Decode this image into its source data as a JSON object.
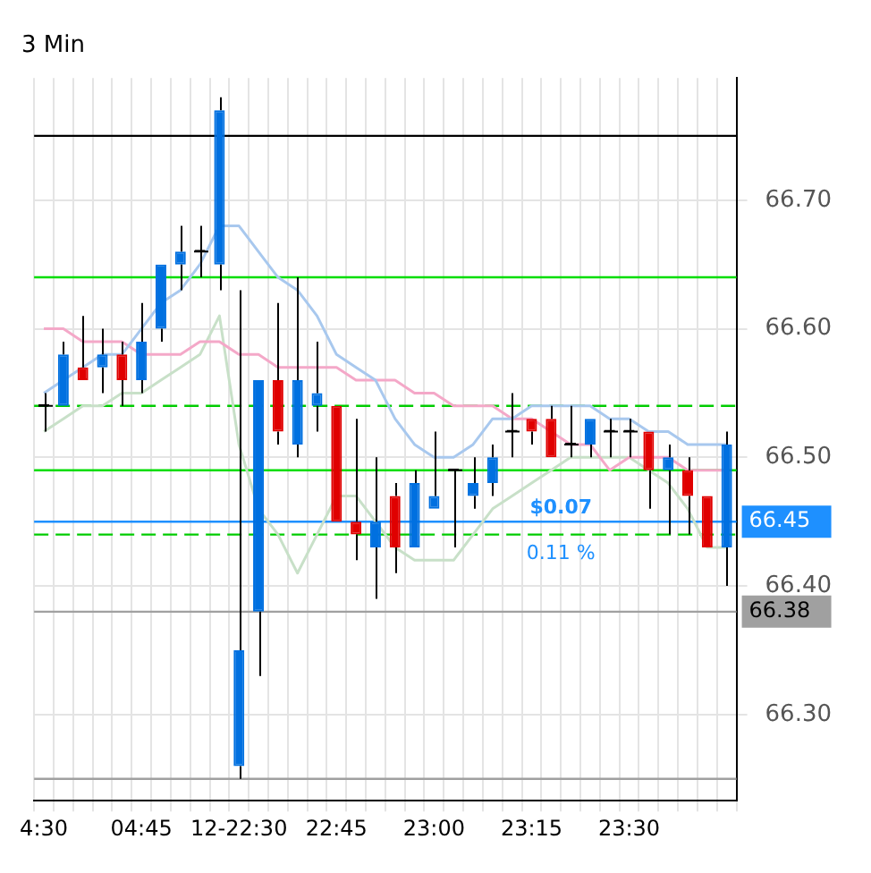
{
  "chart_data": {
    "type": "candlestick",
    "title": "3 Min",
    "categories": [
      "4:30",
      null,
      null,
      null,
      null,
      "04:45",
      null,
      null,
      null,
      null,
      "12-22:30",
      null,
      null,
      null,
      null,
      "22:45",
      null,
      null,
      null,
      null,
      "23:00",
      null,
      null,
      null,
      null,
      "23:15",
      null,
      null,
      null,
      null,
      "23:30",
      null,
      null,
      null,
      null,
      null
    ],
    "ohlc": [
      [
        66.54,
        66.55,
        66.52,
        66.54
      ],
      [
        66.54,
        66.59,
        66.54,
        66.58
      ],
      [
        66.57,
        66.61,
        66.56,
        66.56
      ],
      [
        66.57,
        66.6,
        66.55,
        66.58
      ],
      [
        66.58,
        66.59,
        66.54,
        66.56
      ],
      [
        66.56,
        66.62,
        66.55,
        66.59
      ],
      [
        66.6,
        66.65,
        66.59,
        66.65
      ],
      [
        66.65,
        66.68,
        66.63,
        66.66
      ],
      [
        66.66,
        66.68,
        66.64,
        66.66
      ],
      [
        66.65,
        66.78,
        66.63,
        66.77
      ],
      [
        66.26,
        66.63,
        66.25,
        66.35
      ],
      [
        66.38,
        66.56,
        66.33,
        66.56
      ],
      [
        66.56,
        66.62,
        66.51,
        66.52
      ],
      [
        66.51,
        66.64,
        66.5,
        66.56
      ],
      [
        66.54,
        66.59,
        66.52,
        66.55
      ],
      [
        66.54,
        66.54,
        66.45,
        66.45
      ],
      [
        66.45,
        66.53,
        66.42,
        66.44
      ],
      [
        66.43,
        66.5,
        66.39,
        66.45
      ],
      [
        66.47,
        66.48,
        66.41,
        66.43
      ],
      [
        66.43,
        66.49,
        66.43,
        66.48
      ],
      [
        66.46,
        66.52,
        66.46,
        66.47
      ],
      [
        66.49,
        66.49,
        66.43,
        66.49
      ],
      [
        66.47,
        66.5,
        66.46,
        66.48
      ],
      [
        66.48,
        66.51,
        66.47,
        66.5
      ],
      [
        66.52,
        66.55,
        66.5,
        66.52
      ],
      [
        66.53,
        66.53,
        66.51,
        66.52
      ],
      [
        66.53,
        66.54,
        66.5,
        66.5
      ],
      [
        66.51,
        66.54,
        66.5,
        66.51
      ],
      [
        66.51,
        66.53,
        66.5,
        66.53
      ],
      [
        66.52,
        66.53,
        66.5,
        66.52
      ],
      [
        66.52,
        66.53,
        66.5,
        66.52
      ],
      [
        66.52,
        66.52,
        66.46,
        66.49
      ],
      [
        66.49,
        66.51,
        66.44,
        66.5
      ],
      [
        66.49,
        66.5,
        66.44,
        66.47
      ],
      [
        66.47,
        66.47,
        66.43,
        66.43
      ],
      [
        66.43,
        66.52,
        66.4,
        66.51
      ]
    ],
    "colors": [
      "#000000",
      "#0070e0",
      "#e00000",
      "#0070e0",
      "#e00000",
      "#0070e0",
      "#0070e0",
      "#0070e0",
      "#000000",
      "#0070e0",
      "#0070e0",
      "#0070e0",
      "#e00000",
      "#0070e0",
      "#0070e0",
      "#e00000",
      "#e00000",
      "#0070e0",
      "#e00000",
      "#0070e0",
      "#0070e0",
      "#000000",
      "#0070e0",
      "#0070e0",
      "#000000",
      "#e00000",
      "#e00000",
      "#000000",
      "#0070e0",
      "#000000",
      "#000000",
      "#e00000",
      "#0070e0",
      "#e00000",
      "#e00000",
      "#0070e0"
    ],
    "series": [
      {
        "type": "line",
        "color": "#a8c8ee",
        "values": [
          66.55,
          66.56,
          66.57,
          66.58,
          66.58,
          66.6,
          66.62,
          66.63,
          66.65,
          66.68,
          66.68,
          66.66,
          66.64,
          66.63,
          66.61,
          66.58,
          66.57,
          66.56,
          66.53,
          66.51,
          66.5,
          66.5,
          66.51,
          66.53,
          66.53,
          66.54,
          66.54,
          66.54,
          66.54,
          66.53,
          66.53,
          66.52,
          66.52,
          66.51,
          66.51,
          66.51
        ]
      },
      {
        "type": "line",
        "color": "#f4a8c8",
        "values": [
          66.6,
          66.6,
          66.59,
          66.59,
          66.59,
          66.58,
          66.58,
          66.58,
          66.59,
          66.59,
          66.58,
          66.58,
          66.57,
          66.57,
          66.57,
          66.57,
          66.56,
          66.56,
          66.56,
          66.55,
          66.55,
          66.54,
          66.54,
          66.54,
          66.53,
          66.53,
          66.52,
          66.51,
          66.51,
          66.49,
          66.5,
          66.5,
          66.5,
          66.49,
          66.49,
          66.49
        ]
      },
      {
        "type": "line",
        "color": "#c8e0c8",
        "values": [
          66.52,
          66.53,
          66.54,
          66.54,
          66.55,
          66.55,
          66.56,
          66.57,
          66.58,
          66.61,
          66.51,
          66.46,
          66.44,
          66.41,
          66.44,
          66.47,
          66.47,
          66.45,
          66.43,
          66.42,
          66.42,
          66.42,
          66.44,
          66.46,
          66.47,
          66.48,
          66.49,
          66.5,
          66.5,
          66.5,
          66.5,
          66.49,
          66.48,
          66.46,
          66.43,
          66.43
        ]
      }
    ],
    "ylim": [
      66.233,
      66.795
    ],
    "yticks": [
      {
        "value": 66.3,
        "label": "66.30"
      },
      {
        "value": 66.4,
        "label": "66.40"
      },
      {
        "value": 66.5,
        "label": "66.50"
      },
      {
        "value": 66.6,
        "label": "66.60"
      },
      {
        "value": 66.7,
        "label": "66.70"
      }
    ],
    "grid": true,
    "legend": false,
    "ref_lines": [
      {
        "axis": "y",
        "value": 66.75,
        "color": "#000000",
        "line_style": "solid"
      },
      {
        "axis": "y",
        "value": 66.64,
        "color": "#00dd00",
        "line_style": "solid"
      },
      {
        "axis": "y",
        "value": 66.54,
        "color": "#00cc00",
        "line_style": "dashed"
      },
      {
        "axis": "y",
        "value": 66.49,
        "color": "#00dd00",
        "line_style": "solid"
      },
      {
        "axis": "y",
        "value": 66.44,
        "color": "#00cc00",
        "line_style": "dashed"
      },
      {
        "axis": "y",
        "value": 66.45,
        "color": "#1e90ff",
        "line_style": "solid",
        "label": "66.45"
      },
      {
        "axis": "y",
        "value": 66.38,
        "color": "#a0a0a0",
        "line_style": "solid",
        "label": "66.38"
      },
      {
        "axis": "y",
        "value": 66.25,
        "color": "#a0a0a0",
        "line_style": "solid"
      }
    ],
    "annotations": [
      "$0.07",
      "0.11 %"
    ]
  }
}
